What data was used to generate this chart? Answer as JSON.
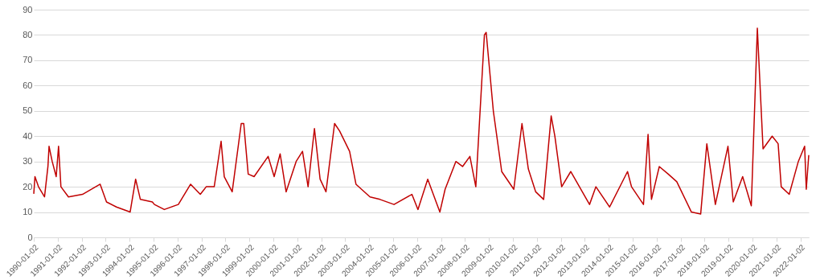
{
  "chart_data": {
    "type": "line",
    "x": [
      "1990-01-02",
      "1990-01-20",
      "1990-03-15",
      "1990-06-15",
      "1990-08-06",
      "1990-08-23",
      "1990-10-10",
      "1990-12-10",
      "1991-01-15",
      "1991-02-20",
      "1991-06-15",
      "1992-01-15",
      "1992-10-10",
      "1993-01-15",
      "1993-06-15",
      "1994-01-10",
      "1994-04-04",
      "1994-06-15",
      "1994-12-15",
      "1995-01-15",
      "1995-06-15",
      "1996-01-15",
      "1996-07-20",
      "1996-12-15",
      "1997-03-15",
      "1997-07-15",
      "1997-10-28",
      "1997-12-15",
      "1998-04-15",
      "1998-08-31",
      "1998-10-08",
      "1998-12-15",
      "1999-03-15",
      "1999-10-15",
      "2000-01-15",
      "2000-04-15",
      "2000-07-15",
      "2000-12-15",
      "2001-03-22",
      "2001-06-15",
      "2001-09-20",
      "2001-12-15",
      "2002-03-15",
      "2002-07-24",
      "2002-10-09",
      "2003-03-10",
      "2003-06-15",
      "2004-01-15",
      "2004-06-15",
      "2005-01-15",
      "2005-10-15",
      "2006-01-15",
      "2006-06-13",
      "2006-12-15",
      "2007-03-05",
      "2007-08-16",
      "2007-11-26",
      "2008-03-17",
      "2008-06-15",
      "2008-10-24",
      "2008-11-20",
      "2009-03-09",
      "2009-07-15",
      "2010-01-15",
      "2010-05-20",
      "2010-08-25",
      "2010-12-15",
      "2011-04-15",
      "2011-08-08",
      "2011-10-03",
      "2012-01-15",
      "2012-06-01",
      "2013-03-15",
      "2013-06-20",
      "2014-01-15",
      "2014-10-15",
      "2014-12-15",
      "2015-06-15",
      "2015-08-24",
      "2015-10-15",
      "2016-02-11",
      "2016-06-27",
      "2016-11-04",
      "2017-06-15",
      "2017-11-03",
      "2018-02-05",
      "2018-06-15",
      "2018-12-24",
      "2019-03-15",
      "2019-08-05",
      "2019-12-15",
      "2020-03-16",
      "2020-06-11",
      "2020-10-28",
      "2021-01-27",
      "2021-03-15",
      "2021-07-15",
      "2021-12-01",
      "2022-03-07",
      "2022-04-01",
      "2022-05-09"
    ],
    "series": [
      {
        "color": "#c00000",
        "values": [
          17.2,
          24,
          20,
          16,
          28,
          36,
          30,
          24,
          36,
          20,
          16,
          17,
          21,
          14,
          12,
          10,
          23,
          15,
          14,
          13,
          11,
          13,
          21,
          17,
          20,
          20,
          38,
          24,
          18,
          45,
          45,
          25,
          24,
          32,
          24,
          33,
          18,
          30,
          34,
          20,
          43,
          23,
          18,
          45,
          42,
          34,
          21,
          16,
          15,
          13,
          17,
          11,
          23,
          10,
          19,
          30,
          28,
          32,
          20,
          80,
          81,
          50,
          26,
          19,
          45,
          27,
          18,
          15,
          48,
          40,
          20,
          26,
          13,
          20,
          12,
          26,
          20,
          13,
          40.7,
          15,
          28,
          25,
          22,
          10,
          9.2,
          37,
          13,
          36,
          14,
          24,
          12.5,
          82.7,
          35,
          40,
          37,
          20,
          17,
          30,
          36,
          19,
          32.5
        ]
      }
    ],
    "xlim": [
      "1990-01-02",
      "2022-05-09"
    ],
    "xticks": [
      "1990-01-02",
      "1991-01-02",
      "1992-01-02",
      "1993-01-02",
      "1994-01-02",
      "1995-01-02",
      "1996-01-02",
      "1997-01-02",
      "1998-01-02",
      "1999-01-02",
      "2000-01-02",
      "2001-01-02",
      "2002-01-02",
      "2003-01-02",
      "2004-01-02",
      "2005-01-02",
      "2006-01-02",
      "2007-01-02",
      "2008-01-02",
      "2009-01-02",
      "2010-01-02",
      "2011-01-02",
      "2012-01-02",
      "2013-01-02",
      "2014-01-02",
      "2015-01-02",
      "2016-01-02",
      "2017-01-02",
      "2018-01-02",
      "2019-01-02",
      "2020-01-02",
      "2021-01-02",
      "2022-01-02"
    ],
    "ylim": [
      0,
      90
    ],
    "yticks": [
      0,
      10,
      20,
      30,
      40,
      50,
      60,
      70,
      80,
      90
    ],
    "grid": "y",
    "line_style": "solid"
  }
}
